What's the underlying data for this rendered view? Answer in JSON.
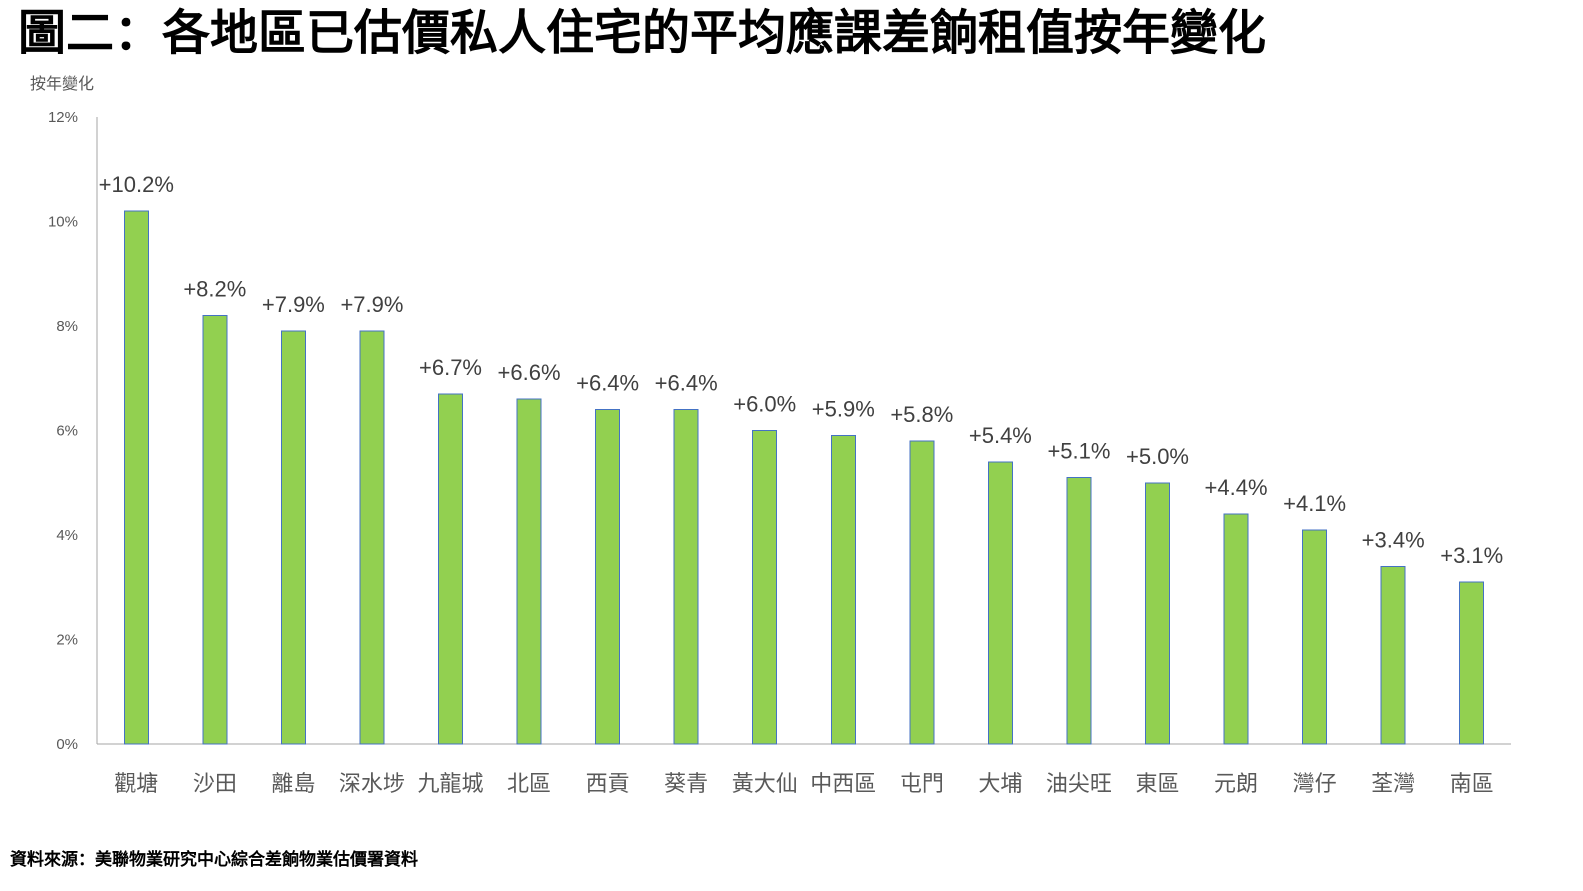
{
  "chart_data": {
    "type": "bar",
    "title": "圖二：各地區已估價私人住宅的平均應課差餉租值按年變化",
    "ylabel": "按年變化",
    "xlabel": "",
    "categories": [
      "觀塘",
      "沙田",
      "離島",
      "深水埗",
      "九龍城",
      "北區",
      "西貢",
      "葵青",
      "黃大仙",
      "中西區",
      "屯門",
      "大埔",
      "油尖旺",
      "東區",
      "元朗",
      "灣仔",
      "荃灣",
      "南區"
    ],
    "values": [
      10.2,
      8.2,
      7.9,
      7.9,
      6.7,
      6.6,
      6.4,
      6.4,
      6.0,
      5.9,
      5.8,
      5.4,
      5.1,
      5.0,
      4.4,
      4.1,
      3.4,
      3.1
    ],
    "data_labels": [
      "+10.2%",
      "+8.2%",
      "+7.9%",
      "+7.9%",
      "+6.7%",
      "+6.6%",
      "+6.4%",
      "+6.4%",
      "+6.0%",
      "+5.9%",
      "+5.8%",
      "+5.4%",
      "+5.1%",
      "+5.0%",
      "+4.4%",
      "+4.1%",
      "+3.4%",
      "+3.1%"
    ],
    "ytick_values": [
      0,
      2,
      4,
      6,
      8,
      10,
      12
    ],
    "yticks": [
      "0%",
      "2%",
      "4%",
      "6%",
      "8%",
      "10%",
      "12%"
    ],
    "ylim": [
      0,
      12
    ],
    "grid": false,
    "legend": "none"
  },
  "source": "資料來源：美聯物業研究中心綜合差餉物業估價署資料",
  "colors": {
    "bar_fill": "#92D050",
    "bar_border": "#4472C4",
    "axis": "#A6A6A6"
  }
}
